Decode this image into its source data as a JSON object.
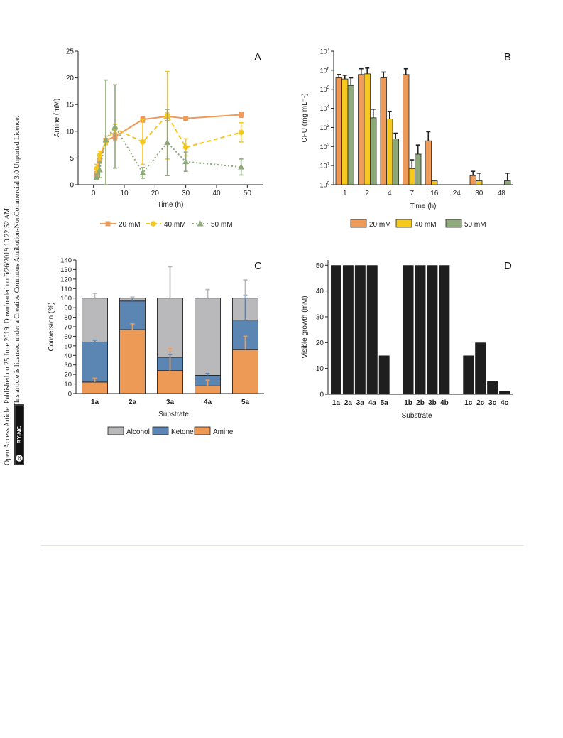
{
  "sidebar": {
    "line1": "Open Access Article. Published on 25 June 2019. Downloaded on 6/26/2019 10:22:52 AM.",
    "line2": "This article is licensed under a Creative Commons Attribution-NonCommercial 3.0 Unported Licence.",
    "badge_cc": "cc",
    "badge_text": "BY-NC"
  },
  "colors": {
    "orange": "#ee9a59",
    "yellow": "#f5c81f",
    "green": "#8faa7a",
    "gray": "#b9b9bb",
    "blue": "#5b86b4",
    "amine": "#ec9a55",
    "black": "#1e1e1e"
  },
  "chart_data": [
    {
      "panel": "A",
      "type": "line",
      "xlabel": "Time (h)",
      "ylabel": "Amine (mM)",
      "xlim": [
        -5,
        55
      ],
      "ylim": [
        0,
        25
      ],
      "xticks": [
        0,
        10,
        20,
        30,
        40,
        50
      ],
      "yticks": [
        0,
        5,
        10,
        15,
        20,
        25
      ],
      "legend_position": "bottom",
      "series": [
        {
          "name": "20 mM",
          "color": "#ee9a59",
          "dash": "solid",
          "marker": "square",
          "x": [
            1,
            2,
            4,
            7,
            16,
            24,
            30,
            48
          ],
          "y": [
            2.0,
            4.5,
            8.3,
            9.0,
            12.2,
            12.8,
            12.4,
            13.1
          ],
          "err": [
            0.4,
            0.5,
            0.8,
            0.6,
            0.5,
            0.8,
            0.3,
            0.5
          ]
        },
        {
          "name": "40 mM",
          "color": "#f5c81f",
          "dash": "dashed",
          "marker": "circle",
          "x": [
            1,
            2,
            4,
            7,
            16,
            24,
            30,
            48
          ],
          "y": [
            3.0,
            5.5,
            8.0,
            10.5,
            8.0,
            13.0,
            7.0,
            9.8
          ],
          "err": [
            0.8,
            0.8,
            0.5,
            0.8,
            4.2,
            8.2,
            1.6,
            1.8
          ]
        },
        {
          "name": "50 mM",
          "color": "#8faa7a",
          "dash": "dotted",
          "marker": "triangle",
          "x": [
            1,
            2,
            4,
            7,
            16,
            24,
            30,
            48
          ],
          "y": [
            1.5,
            2.8,
            8.4,
            10.9,
            2.2,
            7.9,
            4.3,
            3.3
          ],
          "err": [
            0.5,
            1.5,
            11.2,
            7.8,
            1.0,
            6.2,
            1.8,
            1.5
          ]
        }
      ]
    },
    {
      "panel": "B",
      "type": "bar",
      "xlabel": "Time (h)",
      "ylabel": "CFU (mg mL⁻¹)",
      "yscale": "log",
      "ylim": [
        1,
        10000000
      ],
      "categories": [
        "1",
        "2",
        "4",
        "7",
        "16",
        "24",
        "30",
        "48"
      ],
      "yticks": [
        {
          "v": 1,
          "e": "0"
        },
        {
          "v": 10,
          "e": "1"
        },
        {
          "v": 100,
          "e": "2"
        },
        {
          "v": 1000,
          "e": "3"
        },
        {
          "v": 10000,
          "e": "4"
        },
        {
          "v": 100000,
          "e": "5"
        },
        {
          "v": 1000000,
          "e": "6"
        },
        {
          "v": 10000000,
          "e": "7"
        }
      ],
      "tick_base": "10",
      "legend_position": "bottom",
      "series": [
        {
          "name": "20 mM",
          "color": "#ee9a59",
          "values": [
            400000,
            600000,
            400000,
            600000,
            200,
            null,
            3,
            null
          ],
          "err_top": [
            600000,
            1200000,
            800000,
            1200000,
            600,
            null,
            5,
            null
          ]
        },
        {
          "name": "40 mM",
          "color": "#f5c81f",
          "values": [
            350000,
            650000,
            2800,
            7,
            1.6,
            null,
            1.6,
            null
          ],
          "err_top": [
            550000,
            1300000,
            7000,
            20,
            null,
            null,
            4,
            null
          ]
        },
        {
          "name": "50 mM",
          "color": "#8faa7a",
          "values": [
            160000,
            3200,
            250,
            40,
            null,
            null,
            null,
            1.6
          ],
          "err_top": [
            400000,
            9000,
            500,
            120,
            null,
            null,
            null,
            4
          ]
        }
      ]
    },
    {
      "panel": "C",
      "type": "bar",
      "stacked": true,
      "xlabel": "Substrate",
      "ylabel": "Conversion (%)",
      "ylim": [
        0,
        140
      ],
      "yticks": [
        0,
        10,
        20,
        30,
        40,
        50,
        60,
        70,
        80,
        90,
        100,
        110,
        120,
        130,
        140
      ],
      "categories": [
        "1a",
        "2a",
        "3a",
        "4a",
        "5a"
      ],
      "legend_position": "bottom",
      "series": [
        {
          "name": "Amine",
          "color": "#ec9a55",
          "values": [
            12,
            67,
            24,
            8,
            46
          ],
          "err": [
            4,
            6,
            23,
            6,
            14
          ]
        },
        {
          "name": "Ketone",
          "color": "#5b86b4",
          "values": [
            42,
            30,
            14,
            11,
            31
          ],
          "err": [
            2,
            4,
            3,
            2,
            26
          ]
        },
        {
          "name": "Alcohol",
          "color": "#b9b9bb",
          "values": [
            46,
            3,
            62,
            81,
            23
          ],
          "err": [
            5,
            1,
            33,
            9,
            19
          ]
        }
      ]
    },
    {
      "panel": "D",
      "type": "bar",
      "xlabel": "Substrate",
      "ylabel": "Visible growth (mM)",
      "ylim": [
        0,
        52
      ],
      "yticks": [
        0,
        10,
        20,
        30,
        40,
        50
      ],
      "categories": [
        "1a",
        "2a",
        "3a",
        "4a",
        "5a",
        "1b",
        "2b",
        "3b",
        "4b",
        "1c",
        "2c",
        "3c",
        "4c"
      ],
      "values": [
        50,
        50,
        50,
        50,
        15,
        50,
        50,
        50,
        50,
        15,
        20,
        5,
        1.2
      ],
      "color": "#1e1e1e"
    }
  ]
}
